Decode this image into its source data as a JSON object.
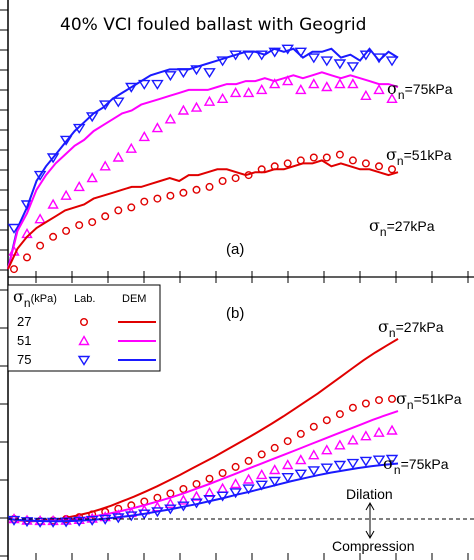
{
  "figure": {
    "title": "40% VCI  fouled ballast with Geogrid",
    "colors": {
      "27": "#e00000",
      "51": "#ff00ff",
      "75": "#1a1aff"
    }
  },
  "chart_data": [
    {
      "type": "line",
      "panel_label": "(a)",
      "series": [
        {
          "sigma_n_kPa": 75,
          "dem_y": [
            0.2,
            1.6,
            2.3,
            3.2,
            3.7,
            4.1,
            4.5,
            4.9,
            5.2,
            5.5,
            5.7,
            6.0,
            6.2,
            6.4,
            6.6,
            6.8,
            6.9,
            7.0,
            7.0,
            7.0,
            7.1,
            7.2,
            7.3,
            7.4,
            7.5,
            7.6,
            7.6,
            7.5,
            7.7,
            7.6,
            7.7,
            7.4,
            7.6,
            7.6,
            7.7,
            7.4,
            7.5,
            7.3,
            7.7,
            7.3,
            7.6,
            7.4
          ],
          "lab_y": [
            1.6,
            2.4,
            3.4,
            4.0,
            4.6,
            5.0,
            5.4,
            5.8,
            5.9,
            6.4,
            6.5,
            6.5,
            6.8,
            6.9,
            7.0,
            6.9,
            7.3,
            7.5,
            7.5,
            7.5,
            7.6,
            7.7,
            7.6,
            7.4,
            7.3,
            7.2,
            7.1,
            7.5,
            7.4,
            7.3
          ]
        },
        {
          "sigma_n_kPa": 51,
          "dem_y": [
            0.2,
            1.5,
            2.1,
            2.9,
            3.4,
            3.8,
            4.1,
            4.4,
            4.6,
            4.9,
            5.1,
            5.3,
            5.5,
            5.6,
            5.8,
            5.9,
            6.0,
            6.1,
            6.2,
            6.3,
            6.3,
            6.3,
            6.4,
            6.5,
            6.5,
            6.6,
            6.6,
            6.7,
            6.6,
            6.7,
            6.8,
            6.7,
            6.8,
            6.9,
            6.8,
            6.7,
            6.8,
            6.7,
            6.6,
            6.5,
            6.5,
            6.4
          ],
          "lab_y": [
            0.8,
            1.4,
            1.9,
            2.4,
            2.7,
            3.0,
            3.3,
            3.7,
            4.0,
            4.3,
            4.7,
            5.0,
            5.3,
            5.6,
            5.7,
            5.9,
            6.0,
            6.2,
            6.2,
            6.3,
            6.5,
            6.6,
            6.3,
            6.5,
            6.4,
            6.5,
            6.5,
            6.1,
            6.3,
            6.0
          ]
        },
        {
          "sigma_n_kPa": 27,
          "dem_y": [
            0.2,
            0.9,
            1.3,
            1.6,
            1.8,
            2.0,
            2.2,
            2.3,
            2.4,
            2.6,
            2.7,
            2.8,
            2.9,
            3.0,
            3.0,
            3.1,
            3.2,
            3.3,
            3.2,
            3.4,
            3.4,
            3.5,
            3.6,
            3.6,
            3.5,
            3.4,
            3.5,
            3.5,
            3.6,
            3.6,
            3.7,
            3.8,
            3.8,
            3.9,
            3.7,
            3.8,
            3.7,
            3.6,
            3.6,
            3.5,
            3.4,
            3.5
          ],
          "lab_y": [
            0.2,
            0.6,
            1.0,
            1.3,
            1.5,
            1.7,
            1.8,
            2.0,
            2.2,
            2.3,
            2.5,
            2.6,
            2.7,
            2.8,
            2.9,
            3.0,
            3.2,
            3.3,
            3.4,
            3.6,
            3.7,
            3.8,
            3.9,
            4.0,
            4.0,
            4.1,
            3.9,
            3.8,
            3.7,
            3.6
          ]
        }
      ],
      "annotations": [
        "=75kPa",
        "=51kPa",
        "=27kPa"
      ]
    },
    {
      "type": "line",
      "panel_label": "(b)",
      "annotations": [
        "Dilation",
        "Compression"
      ],
      "series": [
        {
          "sigma_n_kPa": 27,
          "dem_y": [
            0.0,
            -0.04,
            -0.06,
            -0.05,
            -0.02,
            0.03,
            0.09,
            0.16,
            0.25,
            0.35,
            0.47,
            0.59,
            0.72,
            0.86,
            1.01,
            1.16,
            1.32,
            1.48,
            1.64,
            1.81,
            1.98,
            2.15,
            2.33,
            2.51,
            2.7,
            2.9,
            3.1,
            3.3,
            3.52,
            3.74,
            3.96,
            4.18,
            4.38,
            4.56,
            4.74
          ],
          "lab_y": [
            0.0,
            -0.04,
            -0.05,
            -0.04,
            0.0,
            0.05,
            0.12,
            0.19,
            0.27,
            0.36,
            0.46,
            0.56,
            0.67,
            0.79,
            0.92,
            1.06,
            1.21,
            1.37,
            1.53,
            1.7,
            1.87,
            2.05,
            2.24,
            2.43,
            2.6,
            2.76,
            2.93,
            3.04,
            3.13,
            3.16
          ]
        },
        {
          "sigma_n_kPa": 51,
          "dem_y": [
            0.0,
            -0.03,
            -0.05,
            -0.05,
            -0.04,
            -0.01,
            0.03,
            0.08,
            0.14,
            0.21,
            0.29,
            0.38,
            0.47,
            0.57,
            0.68,
            0.8,
            0.92,
            1.05,
            1.18,
            1.31,
            1.44,
            1.57,
            1.7,
            1.83,
            1.96,
            2.09,
            2.22,
            2.35,
            2.48,
            2.61,
            2.73,
            2.84
          ],
          "lab_y": [
            0.0,
            -0.04,
            -0.05,
            -0.05,
            -0.04,
            -0.02,
            0.01,
            0.05,
            0.1,
            0.16,
            0.23,
            0.31,
            0.4,
            0.49,
            0.59,
            0.69,
            0.8,
            0.92,
            1.04,
            1.16,
            1.29,
            1.42,
            1.55,
            1.68,
            1.81,
            1.94,
            2.07,
            2.18,
            2.27,
            2.33
          ]
        },
        {
          "sigma_n_kPa": 75,
          "dem_y": [
            0.0,
            -0.03,
            -0.05,
            -0.06,
            -0.06,
            -0.05,
            -0.03,
            0.0,
            0.04,
            0.08,
            0.13,
            0.19,
            0.25,
            0.32,
            0.39,
            0.47,
            0.55,
            0.64,
            0.72,
            0.81,
            0.9,
            0.99,
            1.07,
            1.15,
            1.22,
            1.28,
            1.34,
            1.39,
            1.43,
            1.46
          ],
          "lab_y": [
            -0.03,
            -0.06,
            -0.08,
            -0.08,
            -0.07,
            -0.05,
            -0.03,
            0.0,
            0.04,
            0.09,
            0.14,
            0.2,
            0.27,
            0.35,
            0.43,
            0.52,
            0.61,
            0.7,
            0.8,
            0.9,
            1.0,
            1.1,
            1.19,
            1.28,
            1.35,
            1.42,
            1.47,
            1.53,
            1.56,
            1.58
          ]
        }
      ],
      "legend": {
        "position": "top-left",
        "header": {
          "sigma": "σ",
          "sub": "n",
          "unit": "(kPa)",
          "lab": "Lab.",
          "dem": "DEM"
        },
        "rows": [
          "27",
          "51",
          "75"
        ]
      }
    }
  ]
}
